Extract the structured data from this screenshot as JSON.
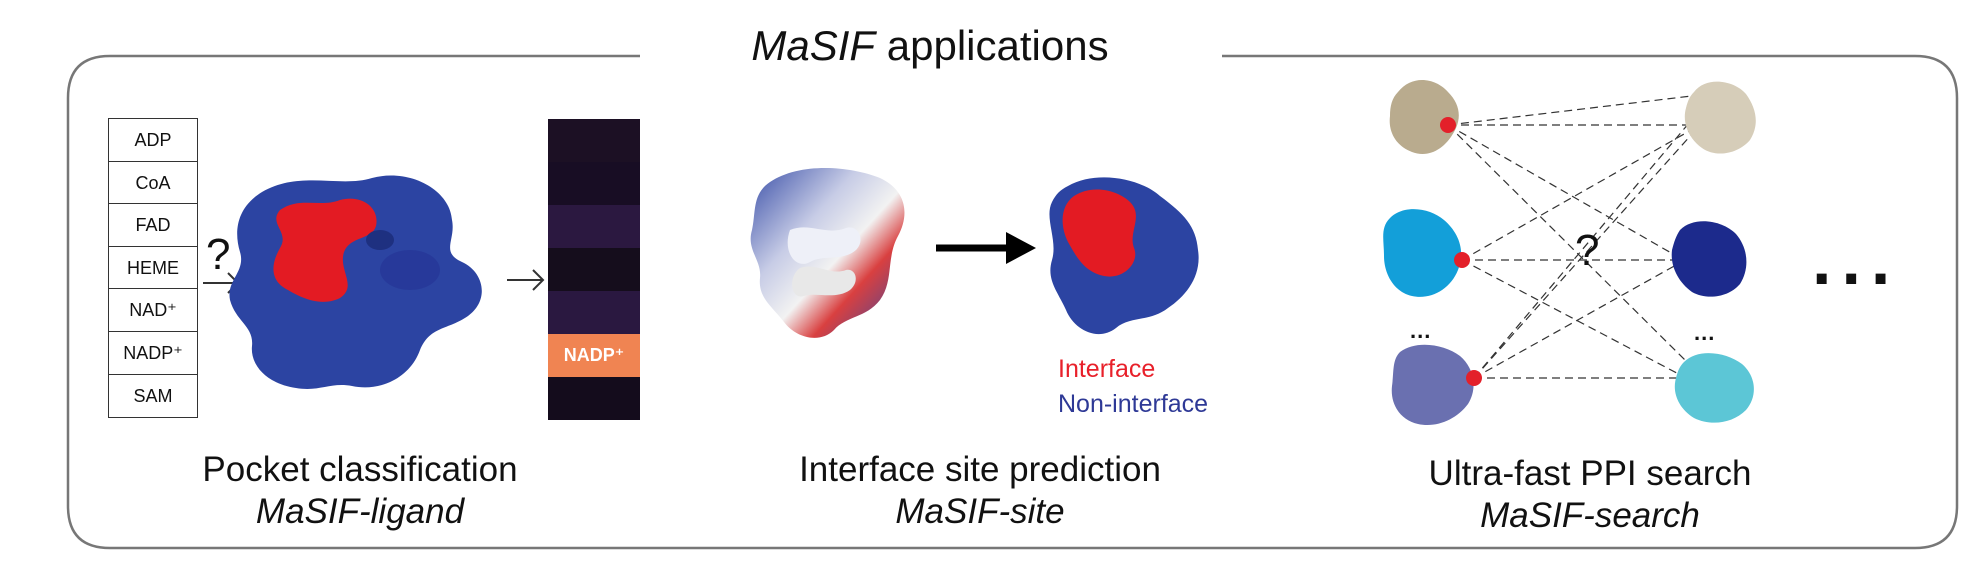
{
  "title": {
    "italic": "MaSIF",
    "rest": " applications"
  },
  "ligands": [
    "ADP",
    "CoA",
    "FAD",
    "HEME",
    "NAD⁺",
    "NADP⁺",
    "SAM"
  ],
  "heatmap": {
    "selected_label": "NADP⁺",
    "colors": [
      "#1c1024",
      "#180d24",
      "#2b1840",
      "#150d1c",
      "#2a1840",
      "#f08452",
      "#140c1c"
    ]
  },
  "question_mark": "?",
  "captions": {
    "pocket": {
      "main": "Pocket classification",
      "sub": "MaSIF-ligand"
    },
    "site": {
      "main": "Interface site prediction",
      "sub": "MaSIF-site"
    },
    "search": {
      "main": "Ultra-fast PPI search",
      "sub": "MaSIF-search"
    }
  },
  "legend": {
    "interface": {
      "label": "Interface",
      "color": "#e8202a"
    },
    "non_interface": {
      "label": "Non-interface",
      "color": "#2e3996"
    }
  },
  "ellipsis_small": "...",
  "ellipsis_big": "...",
  "colors": {
    "protein_blue": "#2c44a2",
    "interface_red": "#e31b23",
    "tan": "#b9ab8e",
    "light_tan": "#d6cdb9",
    "cyan": "#139fd9",
    "navy": "#1c2a8c",
    "slate": "#6a70b0",
    "teal": "#5cc6d6",
    "dot": "#e3202a"
  }
}
